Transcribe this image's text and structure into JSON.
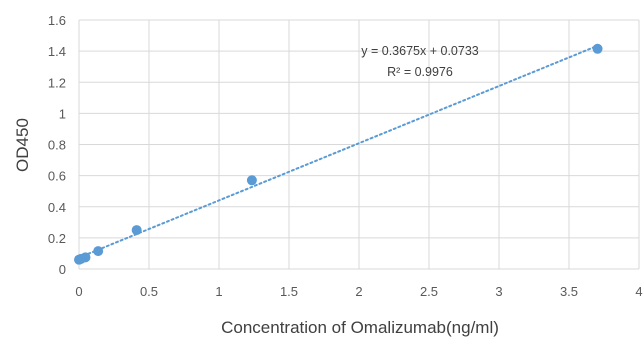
{
  "chart_data": {
    "type": "scatter",
    "title": "",
    "xlabel": "Concentration of Omalizumab(ng/ml)",
    "ylabel": "OD450",
    "xlim": [
      0,
      4
    ],
    "ylim": [
      0,
      1.6
    ],
    "x_ticks": [
      "0",
      "0.5",
      "1",
      "1.5",
      "2",
      "2.5",
      "3",
      "3.5",
      "4"
    ],
    "y_ticks": [
      "0",
      "0.2",
      "0.4",
      "0.6",
      "0.8",
      "1",
      "1.2",
      "1.4",
      "1.6"
    ],
    "grid": true,
    "series": [
      {
        "color": "#5b9bd5",
        "points": [
          {
            "x": 0,
            "y": 0.06
          },
          {
            "x": 0.015,
            "y": 0.065
          },
          {
            "x": 0.046,
            "y": 0.075
          },
          {
            "x": 0.137,
            "y": 0.115
          },
          {
            "x": 0.412,
            "y": 0.25
          },
          {
            "x": 1.235,
            "y": 0.57
          },
          {
            "x": 3.704,
            "y": 1.415
          }
        ]
      }
    ],
    "trendline": {
      "type": "linear",
      "style": "dotted",
      "color": "#5b9bd5",
      "slope": 0.3675,
      "intercept": 0.0733,
      "x_range": [
        0,
        3.704
      ],
      "equation": "y = 0.3675x + 0.0733",
      "r_squared": "R² = 0.9976"
    }
  }
}
